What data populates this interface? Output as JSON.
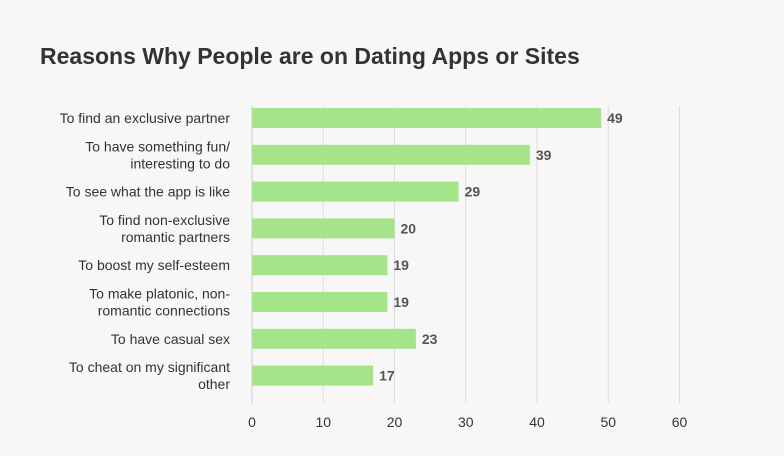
{
  "chart_data": {
    "type": "bar",
    "orientation": "horizontal",
    "title": "Reasons Why People are on Dating Apps or Sites",
    "categories": [
      "To find an exclusive partner",
      "To have something fun/ interesting to do",
      "To see what the app is like",
      "To find non-exclusive romantic partners",
      "To boost my self-esteem",
      "To make platonic, non-romantic connections",
      "To have casual sex",
      "To cheat on my significant other"
    ],
    "category_lines": [
      [
        "To find an exclusive partner"
      ],
      [
        "To have something fun/",
        "interesting to do"
      ],
      [
        "To see what the app is like"
      ],
      [
        "To find non-exclusive",
        "romantic partners"
      ],
      [
        "To boost my self-esteem"
      ],
      [
        "To make platonic, non-",
        "romantic connections"
      ],
      [
        "To have casual sex"
      ],
      [
        "To cheat on my significant",
        "other"
      ]
    ],
    "values": [
      49,
      39,
      29,
      20,
      19,
      19,
      23,
      17
    ],
    "xlim": [
      0,
      60
    ],
    "xticks": [
      0,
      10,
      20,
      30,
      40,
      50,
      60
    ],
    "grid": true,
    "legend": "none",
    "bar_color": "#a6e48a"
  }
}
